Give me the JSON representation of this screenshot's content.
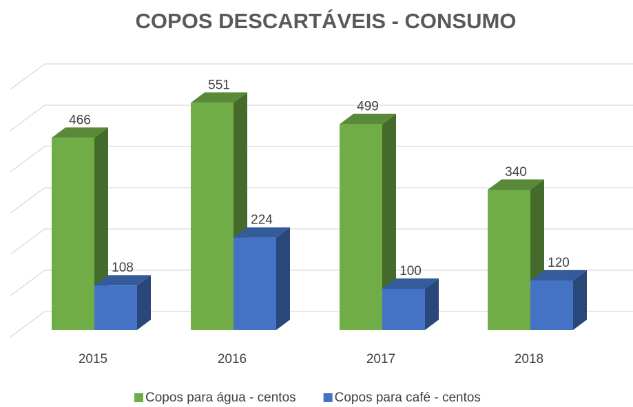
{
  "chart_data": {
    "type": "bar3d",
    "title": "COPOS DESCARTÁVEIS - CONSUMO",
    "categories": [
      "2015",
      "2016",
      "2017",
      "2018"
    ],
    "series": [
      {
        "name": "Copos para água - centos",
        "color": "#70ad47",
        "values": [
          466,
          551,
          499,
          340
        ]
      },
      {
        "name": "Copos para café - centos",
        "color": "#4472c4",
        "values": [
          108,
          224,
          100,
          120
        ]
      }
    ],
    "ylim": [
      0,
      600
    ],
    "yticks": [
      0,
      100,
      200,
      300,
      400,
      500,
      600
    ],
    "grid": true,
    "legend": "bottom"
  }
}
